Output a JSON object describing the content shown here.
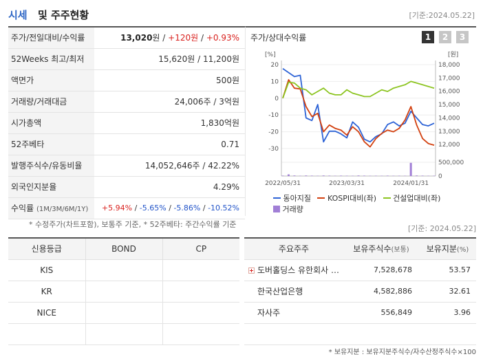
{
  "header": {
    "title_a": "시세",
    "title_b": "및 주주현황",
    "date": "[기준:2024.05.22]"
  },
  "info_rows": [
    {
      "label": "주가/전일대비/수익률",
      "price": "13,020",
      "unit": "원",
      "sep1": " / ",
      "change": "+120원",
      "sep2": " / ",
      "rate": "+0.93%"
    },
    {
      "label": "52Weeks 최고/최저",
      "value": "15,620원 / 11,200원"
    },
    {
      "label": "액면가",
      "value": "500원"
    },
    {
      "label": "거래량/거래대금",
      "value": "24,006주 / 3억원"
    },
    {
      "label": "시가총액",
      "value": "1,830억원"
    },
    {
      "label": "52주베타",
      "value": "0.71"
    },
    {
      "label": "발행주식수/유동비율",
      "value": "14,052,646주 / 42.22%"
    },
    {
      "label": "외국인지분율",
      "value": "4.29%"
    },
    {
      "label": "수익률",
      "sub": "(1M/3M/6M/1Y)",
      "r1": "+5.94%",
      "r2": "-5.65%",
      "r3": "-5.86%",
      "r4": "-10.52%",
      "sep": "/"
    }
  ],
  "note1": "* 수정주가(차트포함), 보통주 기준, * 52주베타: 주간수익률 기준",
  "chart": {
    "title": "주가/상대수익률",
    "pages": [
      "1",
      "2",
      "3"
    ],
    "left_unit": "[%]",
    "right_unit": "[원]",
    "legend": [
      "동아지질",
      "KOSPI대비(좌)",
      "건설업대비(좌)",
      "거래량"
    ],
    "colors": {
      "stock": "#2d63d6",
      "kospi": "#d23f0e",
      "industry": "#8cc420",
      "volume": "#a17fd6"
    }
  },
  "chart_data": {
    "type": "line",
    "x_ticks": [
      "2022/05/31",
      "2023/03/31",
      "2024/01/31"
    ],
    "left_axis": {
      "unit": "[%]",
      "ticks": [
        20,
        10,
        0,
        -10,
        -20,
        -30
      ],
      "range": [
        -30,
        20
      ]
    },
    "right_axis": {
      "unit": "[원]",
      "ticks": [
        "18,000",
        "17,000",
        "16,000",
        "15,000",
        "14,000",
        "13,000",
        "12,000"
      ],
      "range": [
        11700,
        18000
      ]
    },
    "volume_axis": {
      "ticks": [
        "500,000",
        "0"
      ],
      "range": [
        0,
        500000
      ]
    },
    "series": [
      {
        "name": "동아지질",
        "axis": "right",
        "values": [
          17700,
          17400,
          17100,
          17200,
          14000,
          13800,
          15000,
          12200,
          13000,
          13000,
          12800,
          12500,
          13700,
          13300,
          12400,
          12200,
          12600,
          12800,
          13500,
          13700,
          13400,
          13600,
          14500,
          14000,
          13500,
          13400,
          13600
        ]
      },
      {
        "name": "KOSPI대비(좌)",
        "axis": "left",
        "values": [
          0,
          11,
          6,
          5.5,
          -5,
          -11,
          -9,
          -20,
          -16,
          -18,
          -19,
          -22,
          -17,
          -20,
          -26,
          -29,
          -24,
          -21,
          -19,
          -20,
          -18,
          -13,
          -5,
          -16,
          -24,
          -27,
          -28
        ]
      },
      {
        "name": "건설업대비(좌)",
        "axis": "left",
        "values": [
          0,
          9.5,
          9,
          6,
          5,
          2,
          4,
          6,
          3,
          2,
          2,
          5,
          3,
          2,
          1,
          1,
          3,
          5,
          4,
          6,
          7,
          8,
          10,
          9,
          8,
          7,
          6
        ]
      },
      {
        "name": "거래량",
        "axis": "volume",
        "values": [
          15000,
          60000,
          20000,
          10000,
          20000,
          15000,
          10000,
          20000,
          15000,
          10000,
          15000,
          12000,
          10000,
          20000,
          15000,
          10000,
          12000,
          10000,
          15000,
          10000,
          12000,
          10000,
          480000,
          20000,
          15000,
          10000,
          12000
        ]
      }
    ]
  },
  "date2": "[기준: 2024.05.22]",
  "grade": {
    "headers": [
      "신용등급",
      "BOND",
      "CP"
    ],
    "rows": [
      [
        "KIS",
        "",
        ""
      ],
      [
        "KR",
        "",
        ""
      ],
      [
        "NICE",
        "",
        ""
      ],
      [
        "",
        "",
        ""
      ]
    ]
  },
  "holders": {
    "headers": {
      "name": "주요주주",
      "shares": "보유주식수",
      "shares_unit": "(보통)",
      "ratio": "보유지분",
      "ratio_unit": "(%)"
    },
    "rows": [
      {
        "name": "도버홀딩스 유한회사 …",
        "shares": "7,528,678",
        "ratio": "53.57"
      },
      {
        "name": "한국산업은행",
        "shares": "4,582,886",
        "ratio": "32.61"
      },
      {
        "name": "자사주",
        "shares": "556,849",
        "ratio": "3.96"
      },
      {
        "name": "",
        "shares": "",
        "ratio": ""
      }
    ]
  },
  "note2": "* 보유지분 : 보유지분주식수/자수산정주식수×100"
}
